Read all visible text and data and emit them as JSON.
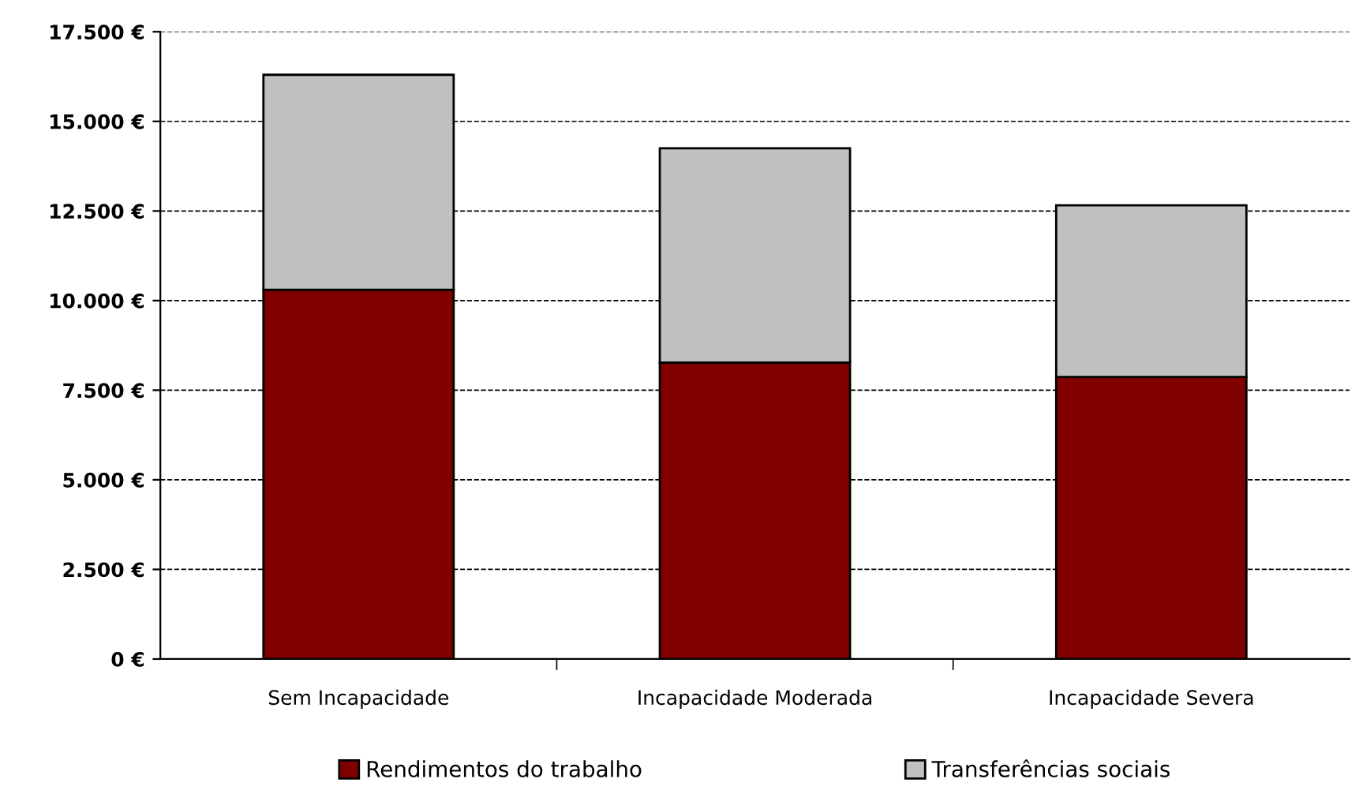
{
  "chart_data": {
    "type": "bar",
    "stacked": true,
    "categories": [
      "Sem Incapacidade",
      "Incapacidade Moderada",
      "Incapacidade Severa"
    ],
    "series": [
      {
        "name": "Rendimentos do trabalho",
        "color": "#800000",
        "values": [
          10300,
          8270,
          7870
        ]
      },
      {
        "name": "Transferências sociais",
        "color": "#c0c0c0",
        "values": [
          6000,
          5980,
          4790
        ]
      }
    ],
    "ylim": [
      0,
      17500
    ],
    "yticks": [
      {
        "value": 0,
        "label": "0 €"
      },
      {
        "value": 2500,
        "label": "2.500 €"
      },
      {
        "value": 5000,
        "label": "5.000 €"
      },
      {
        "value": 7500,
        "label": "7.500 €"
      },
      {
        "value": 10000,
        "label": "10.000 €"
      },
      {
        "value": 12500,
        "label": "12.500 €"
      },
      {
        "value": 15000,
        "label": "15.000 €"
      },
      {
        "value": 17500,
        "label": "17.500 €"
      }
    ],
    "grid": "y",
    "legend": "bottom"
  }
}
